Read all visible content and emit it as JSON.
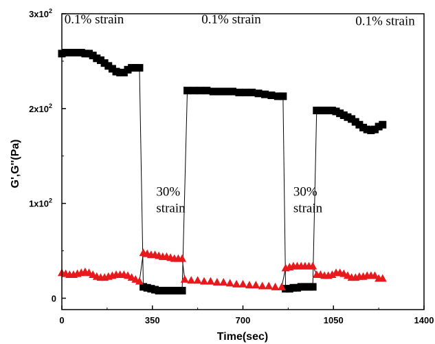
{
  "chart_data": {
    "type": "scatter",
    "xlabel": "Time(sec)",
    "ylabel": "G',G''(Pa)",
    "xlim": [
      0,
      1400
    ],
    "ylim": [
      -12,
      300
    ],
    "x_ticks": [
      0,
      350,
      700,
      1050,
      1400
    ],
    "x_tick_labels": [
      "0",
      "350",
      "700",
      "1050",
      "1400"
    ],
    "y_ticks": [
      0,
      100,
      200,
      300
    ],
    "y_tick_labels": [
      "0",
      "1x10",
      "2x10",
      "3x10"
    ],
    "y_tick_exponents": [
      "",
      "2",
      "2",
      "2"
    ],
    "grid": false,
    "annotations": [
      {
        "lines": [
          "0.1% strain"
        ],
        "x": 10,
        "y": 290
      },
      {
        "lines": [
          "0.1% strain"
        ],
        "x": 540,
        "y": 290
      },
      {
        "lines": [
          "0.1% strain"
        ],
        "x": 1135,
        "y": 288
      },
      {
        "lines": [
          "30%",
          "strain"
        ],
        "x": 365,
        "y": 108
      },
      {
        "lines": [
          "30%",
          "strain"
        ],
        "x": 895,
        "y": 108
      }
    ],
    "series": [
      {
        "marker": "square",
        "color": "#000000",
        "x": [
          0,
          15,
          30,
          45,
          60,
          75,
          90,
          105,
          120,
          135,
          150,
          165,
          180,
          195,
          210,
          225,
          240,
          255,
          270,
          285,
          300,
          315,
          330,
          345,
          360,
          375,
          390,
          405,
          420,
          435,
          450,
          465,
          485,
          510,
          535,
          560,
          585,
          610,
          635,
          660,
          685,
          710,
          735,
          760,
          785,
          810,
          835,
          855,
          865,
          880,
          895,
          910,
          925,
          940,
          955,
          970,
          985,
          1000,
          1015,
          1030,
          1045,
          1060,
          1075,
          1090,
          1105,
          1120,
          1135,
          1150,
          1165,
          1180,
          1195,
          1210,
          1225,
          1240
        ],
        "y": [
          258,
          259,
          259,
          259,
          259,
          259,
          258,
          258,
          256,
          253,
          251,
          248,
          245,
          242,
          239,
          238,
          238,
          241,
          243,
          243,
          243,
          12,
          11,
          10,
          9,
          8,
          8,
          8,
          8,
          8,
          8,
          8,
          219,
          219,
          219,
          219,
          218,
          218,
          218,
          218,
          217,
          217,
          217,
          216,
          215,
          214,
          213,
          213,
          10,
          10,
          11,
          11,
          12,
          12,
          12,
          12,
          198,
          198,
          198,
          198,
          198,
          197,
          195,
          193,
          191,
          189,
          186,
          183,
          180,
          178,
          177,
          178,
          181,
          183
        ]
      },
      {
        "marker": "triangle",
        "color": "#e8191c",
        "x": [
          0,
          15,
          30,
          45,
          60,
          75,
          90,
          105,
          120,
          135,
          150,
          165,
          180,
          195,
          210,
          225,
          240,
          255,
          270,
          285,
          300,
          315,
          330,
          345,
          360,
          375,
          390,
          405,
          420,
          435,
          450,
          465,
          475,
          500,
          525,
          550,
          575,
          600,
          625,
          650,
          675,
          700,
          725,
          750,
          775,
          800,
          825,
          850,
          865,
          880,
          895,
          910,
          925,
          940,
          955,
          970,
          985,
          1000,
          1015,
          1030,
          1045,
          1060,
          1075,
          1090,
          1105,
          1120,
          1135,
          1150,
          1165,
          1180,
          1195,
          1210,
          1225,
          1240
        ],
        "y": [
          27,
          26,
          25,
          25,
          26,
          27,
          28,
          27,
          25,
          23,
          22,
          22,
          23,
          24,
          25,
          25,
          25,
          24,
          22,
          20,
          18,
          48,
          47,
          46,
          46,
          45,
          44,
          44,
          43,
          42,
          42,
          42,
          20,
          19,
          19,
          18,
          18,
          17,
          17,
          16,
          15,
          15,
          14,
          14,
          13,
          13,
          12,
          12,
          32,
          33,
          34,
          34,
          34,
          34,
          34,
          34,
          25,
          25,
          24,
          24,
          25,
          27,
          27,
          26,
          24,
          22,
          22,
          23,
          23,
          24,
          24,
          24,
          21,
          21
        ]
      }
    ],
    "connectors": [
      {
        "x": [
          300,
          315
        ],
        "y": [
          243,
          12
        ]
      },
      {
        "x": [
          465,
          485
        ],
        "y": [
          8,
          219
        ]
      },
      {
        "x": [
          855,
          865
        ],
        "y": [
          213,
          10
        ]
      },
      {
        "x": [
          970,
          985
        ],
        "y": [
          12,
          198
        ]
      },
      {
        "x": [
          300,
          315
        ],
        "y": [
          18,
          48
        ]
      },
      {
        "x": [
          465,
          475
        ],
        "y": [
          42,
          20
        ]
      },
      {
        "x": [
          850,
          865
        ],
        "y": [
          12,
          32
        ]
      },
      {
        "x": [
          970,
          985
        ],
        "y": [
          34,
          25
        ]
      }
    ]
  }
}
